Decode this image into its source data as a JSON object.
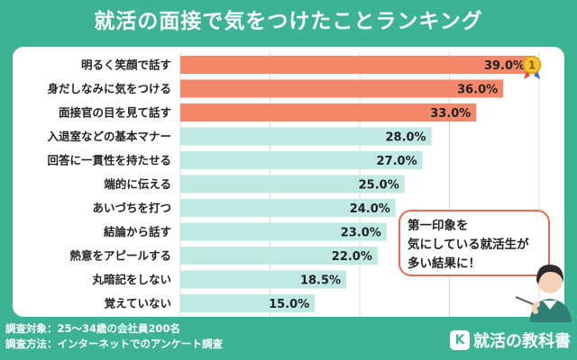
{
  "title": "就活の面接で気をつけたことランキング",
  "chart_data": {
    "type": "bar",
    "orientation": "horizontal",
    "categories": [
      "明るく笑顔で話す",
      "身だしなみに気をつける",
      "面接官の目を見て話す",
      "入退室などの基本マナー",
      "回答に一貫性を持たせる",
      "端的に伝える",
      "あいづちを打つ",
      "結論から話す",
      "熱意をアピールする",
      "丸暗記をしない",
      "覚えていない"
    ],
    "values": [
      39.0,
      36.0,
      33.0,
      28.0,
      27.0,
      25.0,
      24.0,
      23.0,
      22.0,
      18.5,
      15.0
    ],
    "value_labels": [
      "39.0%",
      "36.0%",
      "33.0%",
      "28.0%",
      "27.0%",
      "25.0%",
      "24.0%",
      "23.0%",
      "22.0%",
      "18.5%",
      "15.0%"
    ],
    "unit": "%",
    "xlim": [
      0,
      40
    ],
    "grid": true,
    "highlight_top": 3,
    "colors": {
      "top": "#f2876a",
      "rest": "#bfe9e2"
    },
    "medal_label": "1"
  },
  "callout": {
    "lines": [
      "第一印象を",
      "気にしている就活生が",
      "多い結果に！"
    ]
  },
  "footer": {
    "note1": "調査対象：25～34歳の会社員200名",
    "note2": "調査方法：インターネットでのアンケート調査"
  },
  "logo": {
    "text": "就活の教科書",
    "badge": "K"
  }
}
